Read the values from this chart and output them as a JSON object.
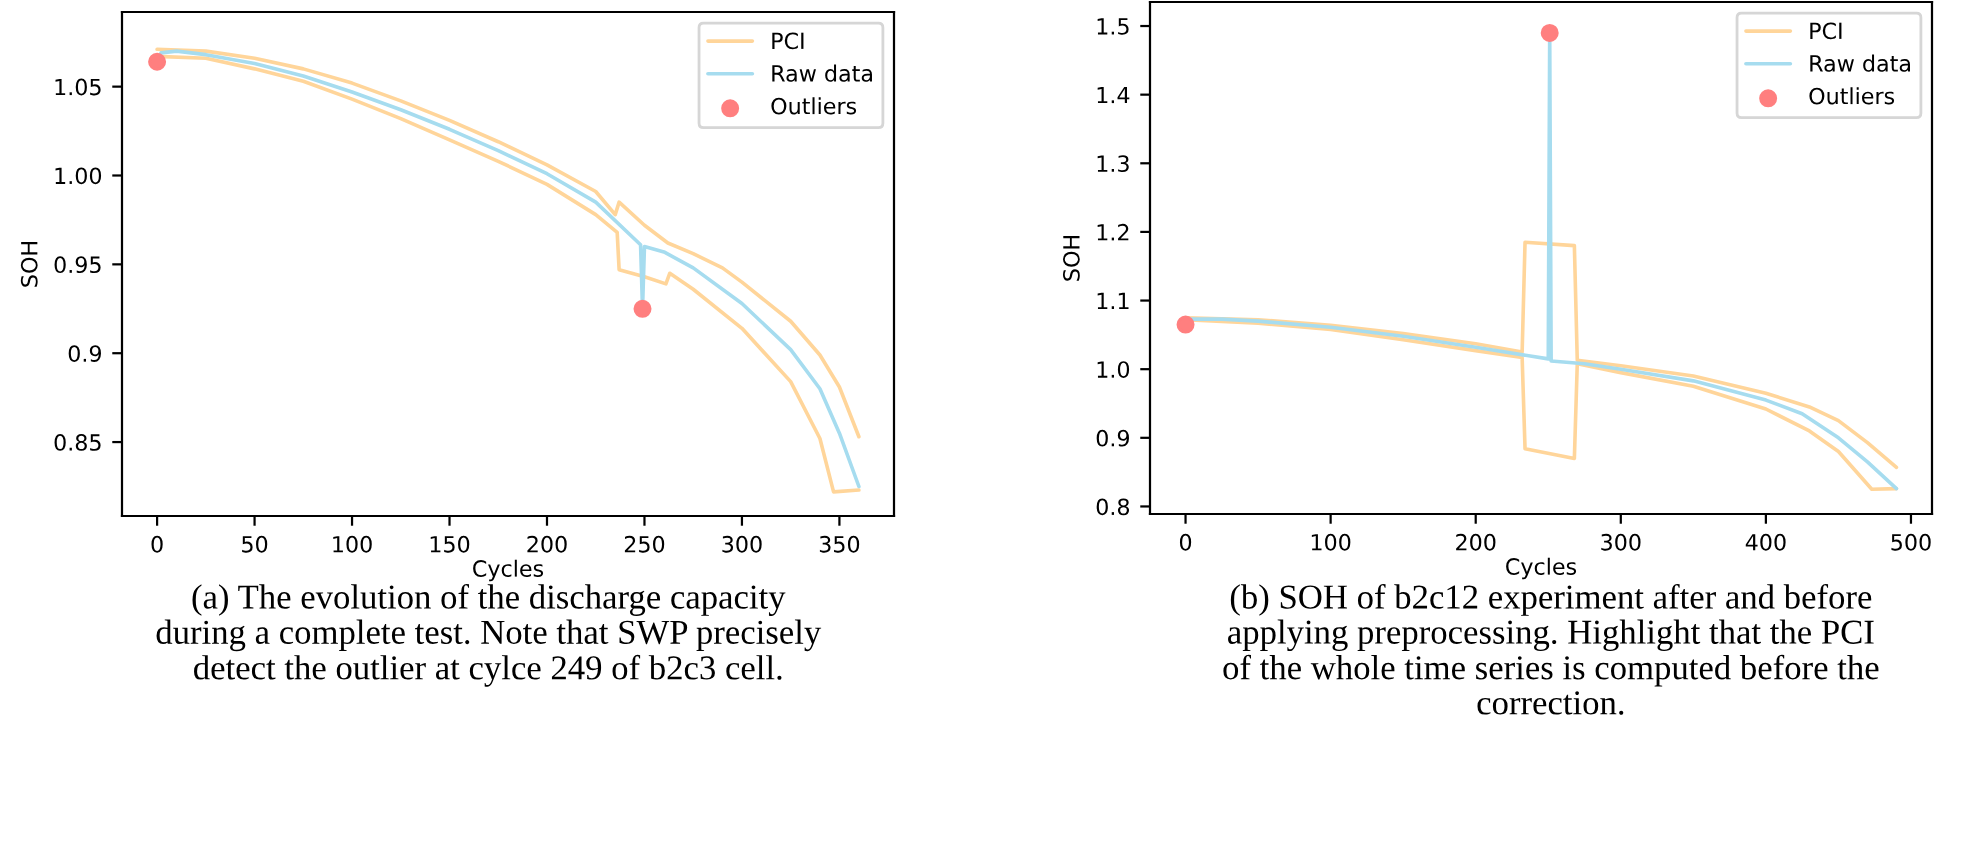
{
  "chart_data": [
    {
      "type": "line",
      "xlabel": "Cycles",
      "ylabel": "SOH",
      "xlim": [
        -18,
        378
      ],
      "ylim": [
        0.8084,
        1.092
      ],
      "xticks": [
        0,
        50,
        100,
        150,
        200,
        250,
        300,
        350
      ],
      "yticks": [
        0.85,
        0.9,
        0.95,
        {
          "value": 1.0,
          "label": "1.00"
        },
        1.05
      ],
      "grid": false,
      "legend": "top right",
      "series": [
        {
          "name": "PCI",
          "type": "line",
          "color": "#ffd59a",
          "x": [
            0,
            25,
            50,
            75,
            100,
            125,
            150,
            175,
            200,
            225,
            235,
            237,
            250,
            262,
            275,
            290,
            300,
            325,
            340,
            350,
            360
          ],
          "values": [
            1.071,
            1.07,
            1.066,
            1.06,
            1.052,
            1.042,
            1.031,
            1.019,
            1.006,
            0.991,
            0.978,
            0.985,
            0.972,
            0.962,
            0.956,
            0.948,
            0.94,
            0.918,
            0.899,
            0.881,
            0.853
          ]
        },
        {
          "type": "line",
          "color": "#ffd59a",
          "x": [
            0,
            25,
            50,
            75,
            100,
            125,
            150,
            175,
            200,
            225,
            236,
            237,
            250,
            261,
            263,
            275,
            300,
            325,
            340,
            347,
            360
          ],
          "values": [
            1.067,
            1.066,
            1.06,
            1.053,
            1.043,
            1.032,
            1.02,
            1.008,
            0.995,
            0.978,
            0.968,
            0.947,
            0.943,
            0.939,
            0.945,
            0.936,
            0.914,
            0.884,
            0.852,
            0.822,
            0.823
          ]
        },
        {
          "name": "Raw data",
          "type": "line",
          "color": "#a6dcef",
          "x": [
            0,
            2,
            10,
            25,
            50,
            75,
            100,
            125,
            150,
            175,
            200,
            225,
            248,
            249,
            250,
            260,
            275,
            300,
            325,
            340,
            350,
            360
          ],
          "values": [
            1.064,
            1.069,
            1.07,
            1.068,
            1.063,
            1.056,
            1.047,
            1.037,
            1.026,
            1.014,
            1.001,
            0.985,
            0.961,
            0.925,
            0.96,
            0.957,
            0.948,
            0.928,
            0.902,
            0.88,
            0.855,
            0.825
          ]
        },
        {
          "name": "Outliers",
          "type": "scatter",
          "color": "#ff7f7f",
          "marker": "circle",
          "x": [
            0,
            249
          ],
          "values": [
            1.064,
            0.925
          ]
        }
      ],
      "annotations": [
        "(a) The evolution of the discharge capacity\nduring a complete test. Note that SWP precisely\ndetect the outlier at cylce 249 of b2c3 cell."
      ]
    },
    {
      "type": "line",
      "xlabel": "Cycles",
      "ylabel": "SOH",
      "xlim": [
        -24.5,
        514.5
      ],
      "ylim": [
        0.789,
        1.535
      ],
      "xticks": [
        0,
        100,
        200,
        300,
        400,
        500
      ],
      "yticks": [
        0.8,
        0.9,
        {
          "value": 1.0,
          "label": "1.0"
        },
        1.1,
        1.2,
        1.3,
        1.4,
        1.5
      ],
      "grid": false,
      "legend": "top right",
      "series": [
        {
          "name": "PCI",
          "type": "line",
          "color": "#ffd59a",
          "x": [
            0,
            50,
            100,
            150,
            200,
            232,
            234,
            268,
            270,
            300,
            350,
            400,
            430,
            450,
            470,
            490
          ],
          "values": [
            1.075,
            1.072,
            1.064,
            1.052,
            1.037,
            1.025,
            1.185,
            1.18,
            1.013,
            1.005,
            0.99,
            0.965,
            0.945,
            0.925,
            0.893,
            0.857
          ]
        },
        {
          "type": "line",
          "color": "#ffd59a",
          "x": [
            0,
            50,
            100,
            150,
            200,
            232,
            234,
            268,
            270,
            300,
            350,
            400,
            430,
            450,
            473,
            490
          ],
          "values": [
            1.072,
            1.067,
            1.058,
            1.043,
            1.027,
            1.017,
            0.884,
            0.87,
            1.008,
            0.995,
            0.975,
            0.942,
            0.91,
            0.88,
            0.825,
            0.826
          ]
        },
        {
          "name": "Raw data",
          "type": "line",
          "color": "#a6dcef",
          "x": [
            0,
            3,
            25,
            50,
            100,
            150,
            200,
            250,
            251,
            252,
            275,
            300,
            350,
            400,
            425,
            450,
            470,
            490
          ],
          "values": [
            1.065,
            1.073,
            1.073,
            1.07,
            1.061,
            1.048,
            1.032,
            1.015,
            1.49,
            1.012,
            1.008,
            1.0,
            0.983,
            0.955,
            0.935,
            0.9,
            0.865,
            0.826
          ]
        },
        {
          "name": "Outliers",
          "type": "scatter",
          "color": "#ff7f7f",
          "marker": "circle",
          "x": [
            0,
            251
          ],
          "values": [
            1.065,
            1.49
          ]
        }
      ],
      "annotations": [
        "(b) SOH of b2c12 experiment after and before\napplying preprocessing. Highlight that the PCI\nof the whole time series is computed before the\ncorrection."
      ]
    }
  ]
}
